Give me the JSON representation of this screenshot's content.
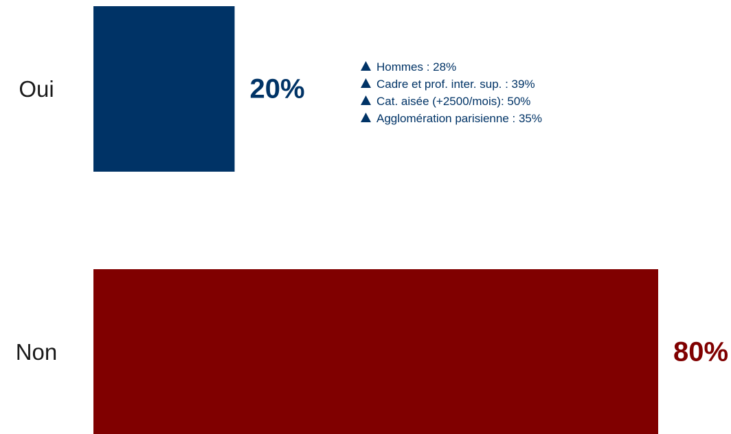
{
  "chart_data": {
    "type": "bar",
    "orientation": "horizontal",
    "categories": [
      "Oui",
      "Non"
    ],
    "values": [
      20,
      80
    ],
    "value_labels": [
      "20%",
      "80%"
    ],
    "colors": [
      "#003366",
      "#800000"
    ],
    "xlim": [
      0,
      80
    ],
    "grid": false,
    "annotations": {
      "category": "Oui",
      "marker": "triangle-up",
      "color": "#003366",
      "items": [
        "Hommes : 28%",
        "Cadre et prof. inter. sup. : 39%",
        "Cat. aisée (+2500/mois): 50%",
        "Agglomération parisienne : 35%"
      ]
    }
  }
}
